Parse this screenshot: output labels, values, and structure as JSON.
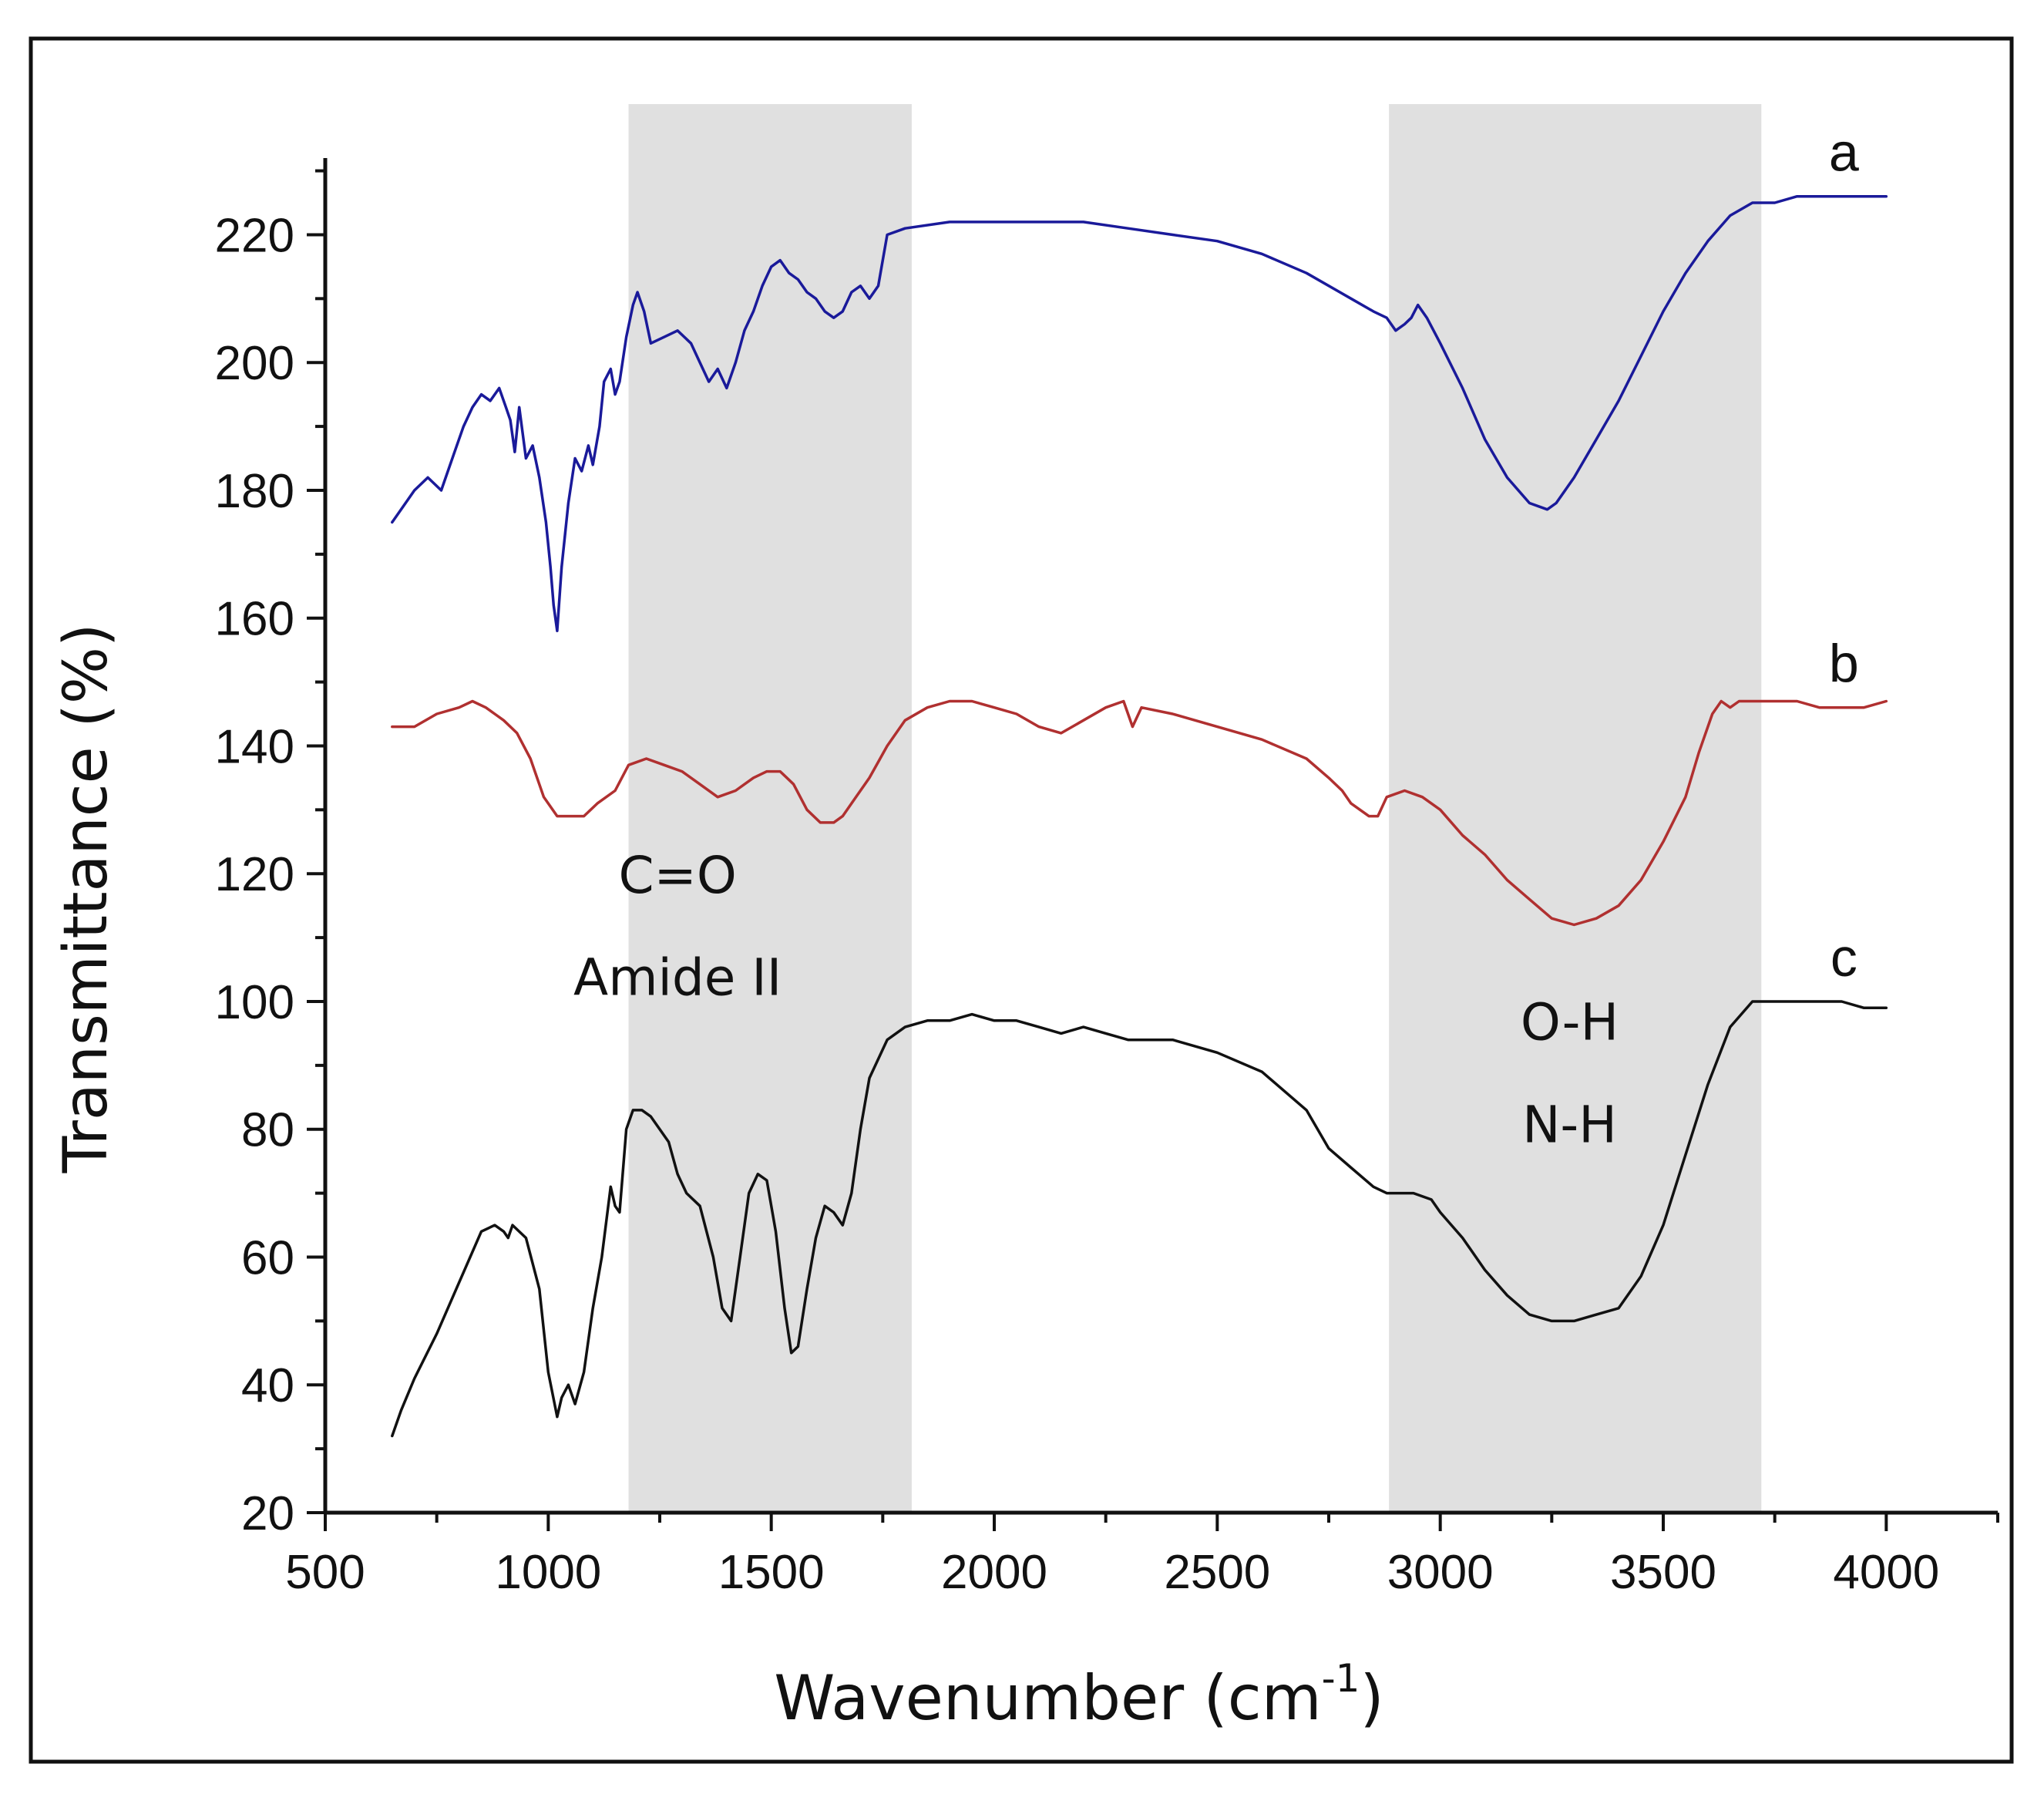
{
  "chart_data": {
    "type": "line",
    "title": "",
    "xlabel": "Wavenumber (cm",
    "xlabel_sup": "-1",
    "xlabel_close": ")",
    "ylabel": "Transmittance (%)",
    "xlim": [
      500,
      4250
    ],
    "ylim": [
      20,
      232
    ],
    "xticks": [
      500,
      1000,
      1500,
      2000,
      2500,
      3000,
      3500,
      4000
    ],
    "yticks": [
      20,
      40,
      60,
      80,
      100,
      120,
      140,
      160,
      180,
      200,
      220
    ],
    "shaded_regions": [
      {
        "x_from": 1180,
        "x_to": 1815,
        "color": "#e0e0e0"
      },
      {
        "x_from": 2885,
        "x_to": 3720,
        "color": "#e0e0e0"
      }
    ],
    "annotations": [
      {
        "text": "C=O",
        "x": 1290,
        "y": 117
      },
      {
        "text": "Amide II",
        "x": 1290,
        "y": 101
      },
      {
        "text": "O-H",
        "x": 3290,
        "y": 94
      },
      {
        "text": "N-H",
        "x": 3290,
        "y": 78
      }
    ],
    "series": [
      {
        "name": "a",
        "color": "#1a1a9a",
        "label_pos": [
          3905,
          230
        ],
        "x": [
          650,
          680,
          700,
          730,
          760,
          790,
          810,
          830,
          850,
          870,
          890,
          905,
          915,
          925,
          935,
          950,
          965,
          980,
          995,
          1005,
          1012,
          1020,
          1030,
          1045,
          1060,
          1075,
          1090,
          1100,
          1115,
          1125,
          1140,
          1150,
          1160,
          1175,
          1190,
          1200,
          1215,
          1230,
          1260,
          1290,
          1320,
          1340,
          1360,
          1380,
          1400,
          1420,
          1440,
          1460,
          1480,
          1500,
          1520,
          1540,
          1560,
          1580,
          1600,
          1620,
          1640,
          1660,
          1680,
          1700,
          1720,
          1740,
          1760,
          1800,
          1900,
          2000,
          2100,
          2200,
          2300,
          2400,
          2500,
          2600,
          2700,
          2800,
          2850,
          2880,
          2900,
          2920,
          2935,
          2950,
          2970,
          3000,
          3050,
          3100,
          3150,
          3200,
          3240,
          3260,
          3300,
          3350,
          3400,
          3450,
          3500,
          3550,
          3600,
          3650,
          3700,
          3750,
          3800,
          3850,
          3900,
          3950,
          4000
        ],
        "y": [
          175,
          178,
          180,
          182,
          180,
          186,
          190,
          193,
          195,
          194,
          196,
          193,
          191,
          186,
          193,
          185,
          187,
          182,
          175,
          168,
          162,
          158,
          168,
          178,
          185,
          183,
          187,
          184,
          190,
          197,
          199,
          195,
          197,
          204,
          209,
          211,
          208,
          203,
          204,
          205,
          203,
          200,
          197,
          199,
          196,
          200,
          205,
          208,
          212,
          215,
          216,
          214,
          213,
          211,
          210,
          208,
          207,
          208,
          211,
          212,
          210,
          212,
          220,
          221,
          222,
          222,
          222,
          222,
          221,
          220,
          219,
          217,
          214,
          210,
          208,
          207,
          205,
          206,
          207,
          209,
          207,
          203,
          196,
          188,
          182,
          178,
          177,
          178,
          182,
          188,
          194,
          201,
          208,
          214,
          219,
          223,
          225,
          225,
          226,
          226,
          226,
          226,
          226
        ]
      },
      {
        "name": "b",
        "color": "#b03030",
        "label_pos": [
          3905,
          150
        ],
        "x": [
          650,
          700,
          750,
          800,
          830,
          860,
          880,
          900,
          930,
          960,
          990,
          1020,
          1050,
          1080,
          1110,
          1150,
          1180,
          1220,
          1260,
          1300,
          1340,
          1380,
          1420,
          1460,
          1490,
          1520,
          1550,
          1580,
          1610,
          1640,
          1660,
          1690,
          1720,
          1760,
          1800,
          1850,
          1900,
          1950,
          2000,
          2050,
          2100,
          2150,
          2200,
          2250,
          2290,
          2300,
          2310,
          2330,
          2400,
          2500,
          2600,
          2700,
          2750,
          2780,
          2800,
          2820,
          2840,
          2860,
          2880,
          2920,
          2960,
          3000,
          3050,
          3100,
          3150,
          3200,
          3250,
          3300,
          3350,
          3400,
          3450,
          3500,
          3550,
          3580,
          3610,
          3630,
          3650,
          3670,
          3700,
          3750,
          3800,
          3850,
          3900,
          3950,
          4000
        ],
        "y": [
          143,
          143,
          145,
          146,
          147,
          146,
          145,
          144,
          142,
          138,
          132,
          129,
          129,
          129,
          131,
          133,
          137,
          138,
          137,
          136,
          134,
          132,
          133,
          135,
          136,
          136,
          134,
          130,
          128,
          128,
          129,
          132,
          135,
          140,
          144,
          146,
          147,
          147,
          146,
          145,
          143,
          142,
          144,
          146,
          147,
          145,
          143,
          146,
          145,
          143,
          141,
          138,
          135,
          133,
          131,
          130,
          129,
          129,
          132,
          133,
          132,
          130,
          126,
          123,
          119,
          116,
          113,
          112,
          113,
          115,
          119,
          125,
          132,
          139,
          145,
          147,
          146,
          147,
          147,
          147,
          147,
          146,
          146,
          146,
          147
        ]
      },
      {
        "name": "c",
        "color": "#111111",
        "label_pos": [
          3905,
          104
        ],
        "x": [
          650,
          670,
          700,
          750,
          800,
          850,
          880,
          900,
          910,
          920,
          950,
          980,
          1000,
          1020,
          1030,
          1045,
          1060,
          1080,
          1100,
          1120,
          1140,
          1150,
          1160,
          1175,
          1190,
          1210,
          1230,
          1250,
          1270,
          1290,
          1310,
          1340,
          1370,
          1390,
          1410,
          1430,
          1450,
          1470,
          1490,
          1510,
          1530,
          1545,
          1560,
          1580,
          1600,
          1620,
          1640,
          1660,
          1680,
          1700,
          1720,
          1760,
          1800,
          1850,
          1900,
          1950,
          2000,
          2050,
          2100,
          2150,
          2200,
          2250,
          2300,
          2400,
          2500,
          2600,
          2700,
          2750,
          2800,
          2850,
          2880,
          2900,
          2940,
          2980,
          3000,
          3050,
          3100,
          3150,
          3200,
          3250,
          3300,
          3350,
          3400,
          3450,
          3500,
          3550,
          3600,
          3650,
          3700,
          3750,
          3800,
          3850,
          3900,
          3950,
          4000
        ],
        "y": [
          32,
          36,
          41,
          48,
          56,
          64,
          65,
          64,
          63,
          65,
          63,
          55,
          42,
          35,
          38,
          40,
          37,
          42,
          52,
          60,
          71,
          68,
          67,
          80,
          83,
          83,
          82,
          80,
          78,
          73,
          70,
          68,
          60,
          52,
          50,
          60,
          70,
          73,
          72,
          64,
          52,
          45,
          46,
          55,
          63,
          68,
          67,
          65,
          70,
          80,
          88,
          94,
          96,
          97,
          97,
          98,
          97,
          97,
          96,
          95,
          96,
          95,
          94,
          94,
          92,
          89,
          83,
          77,
          74,
          71,
          70,
          70,
          70,
          69,
          67,
          63,
          58,
          54,
          51,
          50,
          50,
          51,
          52,
          57,
          65,
          76,
          87,
          96,
          100,
          100,
          100,
          100,
          100,
          99,
          99
        ]
      }
    ]
  }
}
